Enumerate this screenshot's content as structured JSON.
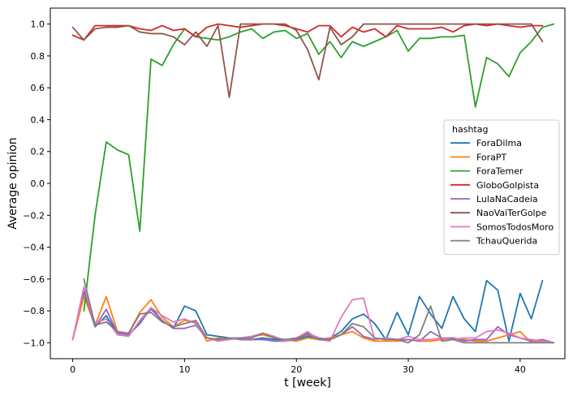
{
  "chart_data": {
    "type": "line",
    "title": "",
    "xlabel": "t [week]",
    "ylabel": "Average opinion",
    "xlim": [
      -2,
      44
    ],
    "ylim": [
      -1.1,
      1.1
    ],
    "xticks": [
      0,
      10,
      20,
      30,
      40
    ],
    "yticks": [
      -1.0,
      -0.8,
      -0.6,
      -0.4,
      -0.2,
      0.0,
      0.2,
      0.4,
      0.6,
      0.8,
      1.0
    ],
    "xtick_labels": [
      "0",
      "10",
      "20",
      "30",
      "40"
    ],
    "ytick_labels": [
      "−1.0",
      "−0.8",
      "−0.6",
      "−0.4",
      "−0.2",
      "0.0",
      "0.2",
      "0.4",
      "0.6",
      "0.8",
      "1.0"
    ],
    "grid": false,
    "legend": {
      "title": "hashtag",
      "placement": "right"
    },
    "series": [
      {
        "name": "ForaDilma",
        "color": "#1f77b4",
        "x": [
          0,
          1,
          2,
          3,
          4,
          5,
          6,
          7,
          8,
          9,
          10,
          11,
          12,
          13,
          14,
          15,
          16,
          17,
          18,
          19,
          20,
          21,
          22,
          23,
          24,
          25,
          26,
          27,
          28,
          29,
          30,
          31,
          32,
          33,
          34,
          35,
          36,
          37,
          38,
          39,
          40,
          41,
          42
        ],
        "y": [
          -0.98,
          -0.68,
          -0.9,
          -0.83,
          -0.94,
          -0.95,
          -0.88,
          -0.78,
          -0.86,
          -0.91,
          -0.77,
          -0.8,
          -0.95,
          -0.96,
          -0.97,
          -0.98,
          -0.98,
          -0.97,
          -0.98,
          -0.98,
          -0.98,
          -0.96,
          -0.98,
          -0.97,
          -0.93,
          -0.85,
          -0.82,
          -0.88,
          -0.98,
          -0.81,
          -0.95,
          -0.71,
          -0.82,
          -0.91,
          -0.71,
          -0.85,
          -0.93,
          -0.61,
          -0.67,
          -0.99,
          -0.69,
          -0.85,
          -0.61
        ]
      },
      {
        "name": "ForaPT",
        "color": "#ff7f0e",
        "x": [
          0,
          1,
          2,
          3,
          4,
          5,
          6,
          7,
          8,
          9,
          10,
          11,
          12,
          13,
          14,
          15,
          16,
          17,
          18,
          19,
          20,
          21,
          22,
          23,
          24,
          25,
          26,
          27,
          28,
          29,
          30,
          31,
          32,
          33,
          34,
          35,
          36,
          37,
          38,
          39,
          40,
          41,
          42,
          43
        ],
        "y": [
          -0.98,
          -0.71,
          -0.89,
          -0.71,
          -0.93,
          -0.94,
          -0.81,
          -0.73,
          -0.84,
          -0.9,
          -0.86,
          -0.87,
          -0.99,
          -0.97,
          -0.98,
          -0.97,
          -0.96,
          -0.95,
          -0.97,
          -0.98,
          -0.99,
          -0.97,
          -0.98,
          -0.97,
          -0.95,
          -0.93,
          -0.97,
          -0.99,
          -0.99,
          -0.99,
          -0.98,
          -0.99,
          -0.99,
          -0.98,
          -0.97,
          -0.98,
          -0.99,
          -0.99,
          -0.97,
          -0.95,
          -0.93,
          -1.0,
          -0.99,
          -1.0
        ]
      },
      {
        "name": "ForaTemer",
        "color": "#2ca02c",
        "x": [
          1,
          2,
          3,
          4,
          5,
          6,
          7,
          8,
          9,
          10,
          11,
          12,
          13,
          14,
          15,
          16,
          17,
          18,
          19,
          20,
          21,
          22,
          23,
          24,
          25,
          26,
          27,
          28,
          29,
          30,
          31,
          32,
          33,
          34,
          35,
          36,
          37,
          38,
          39,
          40,
          41,
          42,
          43
        ],
        "y": [
          -0.8,
          -0.2,
          0.26,
          0.21,
          0.18,
          -0.3,
          0.78,
          0.74,
          0.87,
          0.97,
          0.92,
          0.91,
          0.9,
          0.92,
          0.95,
          0.97,
          0.91,
          0.95,
          0.96,
          0.91,
          0.94,
          0.81,
          0.89,
          0.79,
          0.89,
          0.86,
          0.89,
          0.92,
          0.96,
          0.83,
          0.91,
          0.91,
          0.92,
          0.92,
          0.93,
          0.48,
          0.79,
          0.75,
          0.67,
          0.82,
          0.89,
          0.98,
          1.0
        ]
      },
      {
        "name": "GloboGolpista",
        "color": "#d62728",
        "x": [
          0,
          1,
          2,
          3,
          4,
          5,
          6,
          7,
          8,
          9,
          10,
          11,
          12,
          13,
          14,
          15,
          16,
          17,
          18,
          19,
          20,
          21,
          22,
          23,
          24,
          25,
          26,
          27,
          28,
          29,
          30,
          31,
          32,
          33,
          34,
          35,
          36,
          37,
          38,
          39,
          40,
          41,
          42
        ],
        "y": [
          0.93,
          0.9,
          0.99,
          0.99,
          0.99,
          0.99,
          0.97,
          0.96,
          0.99,
          0.96,
          0.97,
          0.92,
          0.98,
          1.0,
          0.99,
          0.98,
          0.99,
          1.0,
          1.0,
          0.99,
          0.97,
          0.95,
          0.99,
          0.99,
          0.92,
          0.98,
          0.95,
          0.97,
          0.92,
          0.99,
          0.97,
          0.97,
          0.97,
          0.98,
          0.95,
          0.99,
          1.0,
          0.99,
          1.0,
          0.99,
          0.98,
          0.99,
          0.99
        ]
      },
      {
        "name": "LulaNaCadeia",
        "color": "#9467bd",
        "x": [
          0,
          1,
          2,
          3,
          4,
          5,
          6,
          7,
          8,
          9,
          10,
          11,
          12,
          13,
          14,
          15,
          16,
          17,
          18,
          19,
          20,
          21,
          22,
          23,
          24,
          25,
          26,
          27,
          28,
          29,
          30,
          31,
          32,
          33,
          34,
          35,
          36,
          37,
          38,
          39,
          40,
          41,
          42,
          43
        ],
        "y": [
          -0.98,
          -0.66,
          -0.9,
          -0.79,
          -0.94,
          -0.95,
          -0.87,
          -0.79,
          -0.86,
          -0.91,
          -0.91,
          -0.89,
          -0.97,
          -0.98,
          -0.97,
          -0.98,
          -0.98,
          -0.98,
          -0.99,
          -0.99,
          -0.98,
          -0.94,
          -0.97,
          -0.98,
          -0.95,
          -0.9,
          -0.96,
          -0.98,
          -0.97,
          -0.98,
          -0.98,
          -0.99,
          -0.93,
          -0.97,
          -0.97,
          -0.99,
          -0.98,
          -0.98,
          -0.9,
          -0.95,
          -0.97,
          -0.99,
          -0.98,
          -1.0
        ]
      },
      {
        "name": "NaoVaiTerGolpe",
        "color": "#8c564b",
        "x": [
          0,
          1,
          2,
          3,
          4,
          5,
          6,
          7,
          8,
          9,
          10,
          11,
          12,
          13,
          14,
          15,
          16,
          17,
          18,
          19,
          20,
          21,
          22,
          23,
          24,
          25,
          26,
          27,
          28,
          29,
          30,
          31,
          32,
          33,
          34,
          35,
          36,
          37,
          38,
          39,
          40,
          41,
          42
        ],
        "y": [
          0.98,
          0.9,
          0.97,
          0.98,
          0.98,
          0.99,
          0.95,
          0.94,
          0.94,
          0.92,
          0.87,
          0.95,
          0.86,
          0.99,
          0.54,
          1.0,
          1.0,
          1.0,
          1.0,
          1.0,
          0.96,
          0.84,
          0.65,
          0.98,
          0.87,
          0.92,
          1.0,
          1.0,
          1.0,
          1.0,
          1.0,
          1.0,
          1.0,
          1.0,
          1.0,
          1.0,
          1.0,
          1.0,
          1.0,
          1.0,
          1.0,
          1.0,
          0.89
        ]
      },
      {
        "name": "SomosTodosMoro",
        "color": "#e377c2",
        "x": [
          0,
          1,
          2,
          3,
          4,
          5,
          6,
          7,
          8,
          9,
          10,
          11,
          12,
          13,
          14,
          15,
          16,
          17,
          18,
          19,
          20,
          21,
          22,
          23,
          24,
          25,
          26,
          27,
          28,
          29,
          30,
          31,
          32,
          33,
          34,
          35,
          36,
          37,
          38,
          39,
          40,
          41,
          42,
          43
        ],
        "y": [
          -0.98,
          -0.65,
          -0.88,
          -0.85,
          -0.95,
          -0.96,
          -0.86,
          -0.78,
          -0.83,
          -0.87,
          -0.85,
          -0.88,
          -0.97,
          -0.99,
          -0.98,
          -0.97,
          -0.96,
          -0.94,
          -0.96,
          -0.99,
          -0.97,
          -0.93,
          -0.98,
          -0.99,
          -0.84,
          -0.73,
          -0.72,
          -0.98,
          -0.97,
          -0.98,
          -0.96,
          -0.98,
          -0.98,
          -0.97,
          -0.98,
          -0.97,
          -0.97,
          -0.93,
          -0.92,
          -0.94,
          -0.97,
          -0.98,
          -0.99,
          -1.0
        ]
      },
      {
        "name": "TchauQuerida",
        "color": "#7f7f7f",
        "x": [
          1,
          2,
          3,
          4,
          5,
          6,
          7,
          8,
          9,
          10,
          11,
          12,
          13,
          14,
          15,
          16,
          17,
          18,
          19,
          20,
          21,
          22,
          23,
          24,
          25,
          26,
          27,
          28,
          29,
          30,
          31,
          32,
          33,
          34,
          35,
          36,
          37,
          38,
          39,
          40,
          41,
          42,
          43
        ],
        "y": [
          -0.6,
          -0.89,
          -0.87,
          -0.93,
          -0.94,
          -0.82,
          -0.81,
          -0.87,
          -0.9,
          -0.88,
          -0.86,
          -0.97,
          -0.98,
          -0.97,
          -0.97,
          -0.97,
          -0.94,
          -0.97,
          -0.98,
          -0.97,
          -0.95,
          -0.98,
          -0.98,
          -0.95,
          -0.88,
          -0.9,
          -0.97,
          -0.98,
          -0.98,
          -1.0,
          -0.95,
          -0.77,
          -0.99,
          -0.98,
          -1.0,
          -1.0,
          -1.0,
          -1.0,
          -1.0,
          -1.0,
          -1.0,
          -1.0,
          -1.0
        ]
      }
    ]
  }
}
